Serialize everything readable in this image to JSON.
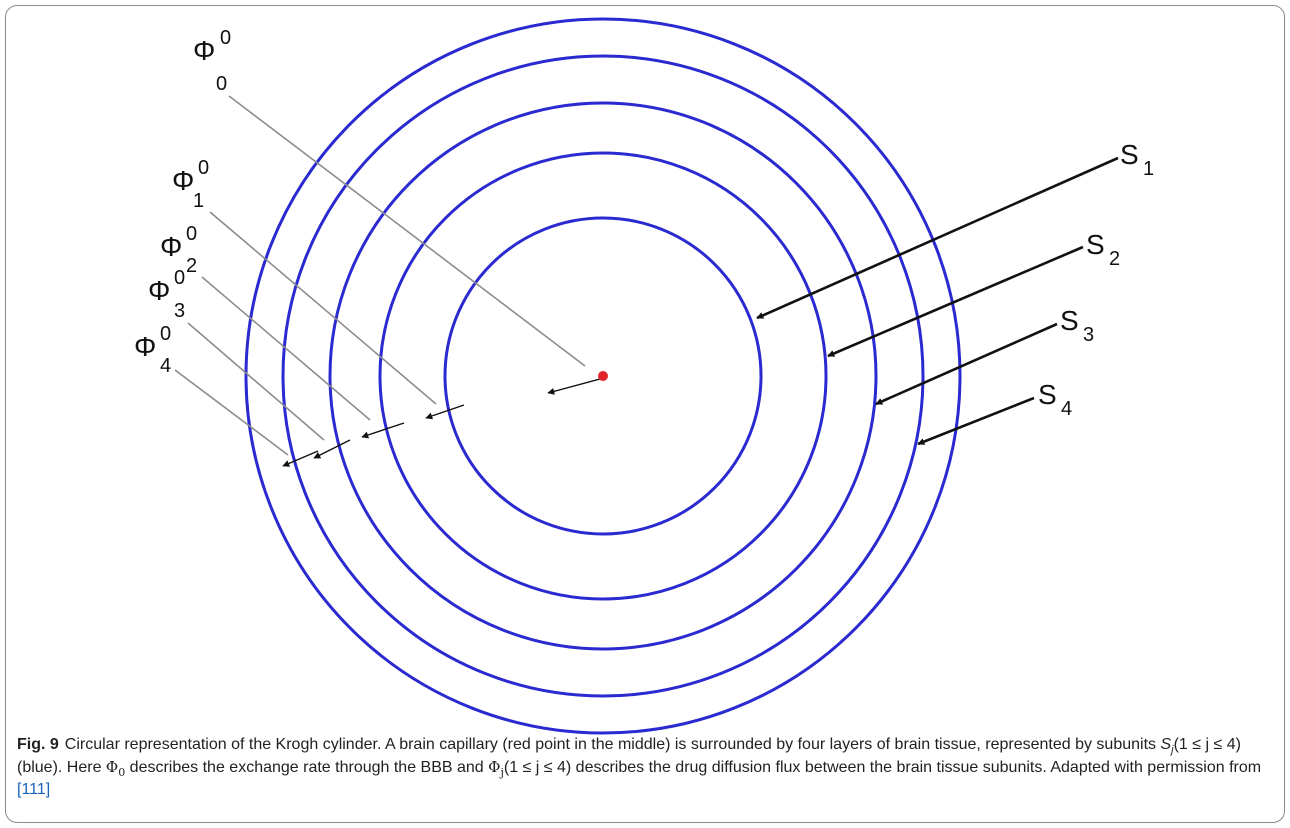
{
  "figure": {
    "labels": {
      "phi": [
        {
          "sym": "Φ",
          "sup": "0",
          "sub": "0"
        },
        {
          "sym": "Φ",
          "sup": "0",
          "sub": "1"
        },
        {
          "sym": "Φ",
          "sup": "0",
          "sub": "2"
        },
        {
          "sym": "Φ",
          "sup": "0",
          "sub": "3"
        },
        {
          "sym": "Φ",
          "sup": "0",
          "sub": "4"
        }
      ],
      "s": [
        {
          "sym": "S",
          "sub": "1"
        },
        {
          "sym": "S",
          "sub": "2"
        },
        {
          "sym": "S",
          "sub": "3"
        },
        {
          "sym": "S",
          "sub": "4"
        }
      ]
    },
    "colors": {
      "rings": "#2a2ad0",
      "capillary": "#e0242a",
      "leaders": "#8c8c8c",
      "arrows": "#111111",
      "link": "#1a62b8"
    }
  },
  "caption": {
    "fig_label": "Fig. 9",
    "t1": "Circular representation of the Krogh cylinder. A brain capillary (red point in the middle) is surrounded by four layers of brain tissue, represented by subunits ",
    "s_sym": "S",
    "s_sub": "j",
    "range1": "(1 ≤ j ≤ 4)",
    "t2": " (blue). Here ",
    "phi0_sym": "Φ",
    "phi0_sub": "0",
    "t3": " describes the exchange rate through the BBB and ",
    "phij_sym": "Φ",
    "phij_sub": "j",
    "range2": "(1 ≤ j ≤ 4)",
    "t4": " describes the drug diffusion flux between the brain tissue subunits. Adapted with permission from ",
    "ref": "[111]"
  }
}
